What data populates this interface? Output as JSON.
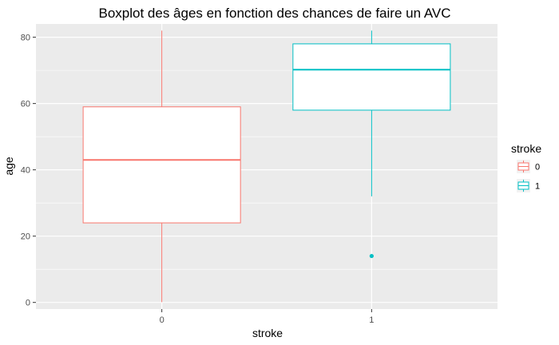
{
  "chart_data": {
    "type": "boxplot",
    "title": "Boxplot des âges en fonction des chances de faire un AVC",
    "xlabel": "stroke",
    "ylabel": "age",
    "categories": [
      "0",
      "1"
    ],
    "ylim": [
      -2,
      84
    ],
    "yticks": [
      0,
      20,
      40,
      60,
      80
    ],
    "grid": true,
    "legend": {
      "title": "stroke",
      "position": "right",
      "entries": [
        "0",
        "1"
      ]
    },
    "colors": {
      "0": "#F8766D",
      "1": "#00BFC4",
      "panel_background": "#EBEBEB",
      "grid": "#FFFFFF"
    },
    "boxes": [
      {
        "category": "0",
        "whisker_low": 0.08,
        "q1": 24,
        "median": 43,
        "q3": 59,
        "whisker_high": 82,
        "outliers": []
      },
      {
        "category": "1",
        "whisker_low": 32,
        "q1": 58,
        "median": 70.2,
        "q3": 78,
        "whisker_high": 82,
        "outliers": [
          14
        ]
      }
    ]
  }
}
